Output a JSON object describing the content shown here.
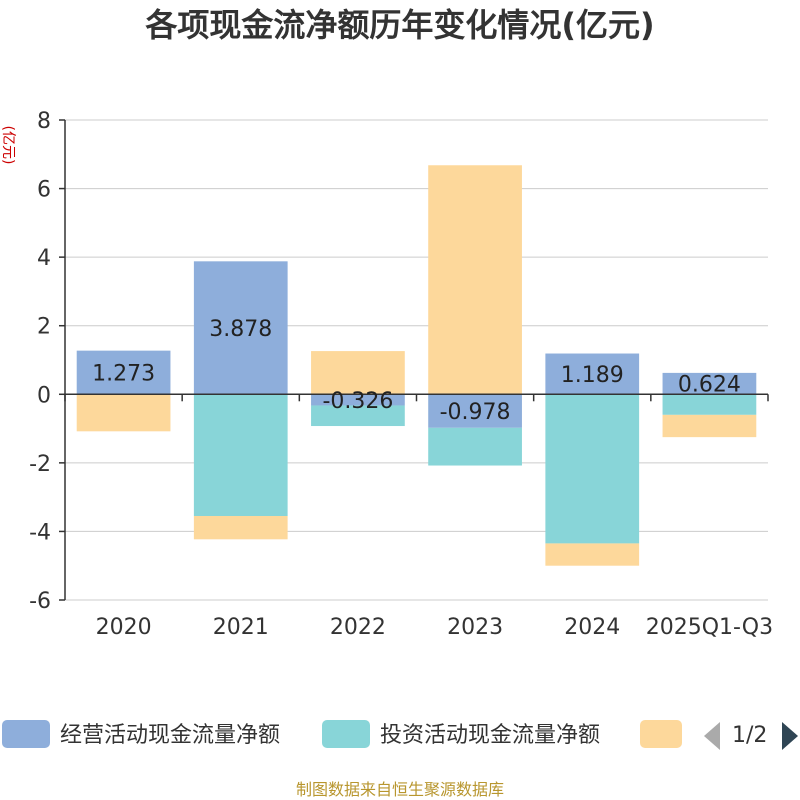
{
  "chart_data": {
    "type": "bar",
    "stacked": true,
    "title": "各项现金流净额历年变化情况(亿元)",
    "ylabel": "(亿元)",
    "ylim": [
      -6,
      8
    ],
    "yticks": [
      -6,
      -4,
      -2,
      0,
      2,
      4,
      6,
      8
    ],
    "grid": true,
    "categories": [
      "2020",
      "2021",
      "2022",
      "2023",
      "2024",
      "2025Q1-Q3"
    ],
    "series": [
      {
        "name": "经营活动现金流量净额",
        "color": "#8eaedb",
        "values": [
          1.273,
          3.878,
          -0.326,
          -0.978,
          1.189,
          0.624
        ],
        "labels": [
          "1.273",
          "3.878",
          "-0.326",
          "-0.978",
          "1.189",
          "0.624"
        ]
      },
      {
        "name": "投资活动现金流量净额",
        "color": "#88d5d8",
        "values": [
          0,
          -3.55,
          -0.6,
          -1.1,
          -4.35,
          -0.6
        ]
      },
      {
        "name": "",
        "color": "#fdd89b",
        "values": [
          -1.08,
          -0.68,
          1.26,
          6.68,
          -0.65,
          -0.65
        ]
      }
    ]
  },
  "legend": {
    "items": [
      "经营活动现金流量净额",
      "投资活动现金流量净额",
      ""
    ],
    "page": "1/2"
  },
  "source": "制图数据来自恒生聚源数据库"
}
